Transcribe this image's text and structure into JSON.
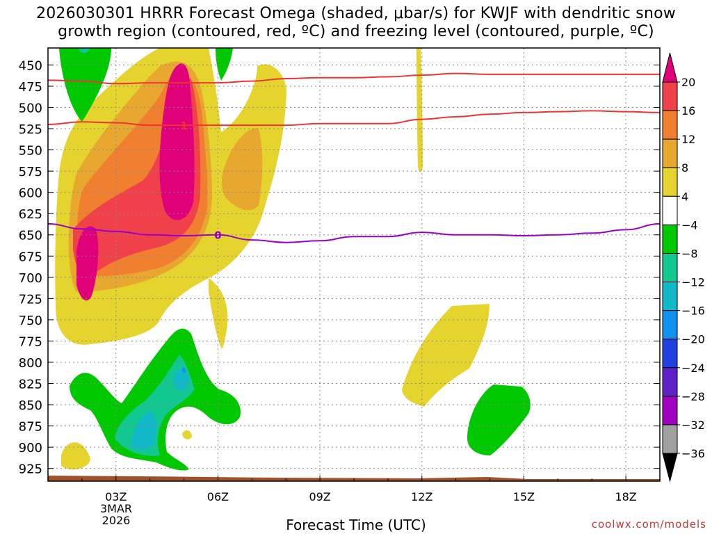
{
  "chart_data": {
    "type": "time-height contour",
    "title_line1": "2026030301 HRRR Forecast Omega (shaded, μbar/s) for KWJF with dendritic snow",
    "title_line2": "growth region (contoured, red, ºC) and freezing level (contoured, purple, ºC)",
    "xlabel": "Forecast Time (UTC)",
    "x_ticks": [
      "03Z",
      "06Z",
      "09Z",
      "12Z",
      "15Z",
      "18Z"
    ],
    "x_ticks_hours": [
      3,
      6,
      9,
      12,
      15,
      18
    ],
    "x_range_hours": [
      1,
      19
    ],
    "date_label_line1": "3MAR",
    "date_label_line2": "2026",
    "y_ticks": [
      450,
      475,
      500,
      525,
      550,
      575,
      600,
      625,
      650,
      675,
      700,
      725,
      750,
      775,
      800,
      825,
      850,
      875,
      900,
      925
    ],
    "ylim_hpa": [
      430,
      940
    ],
    "colorbar": {
      "labels": [
        "20",
        "16",
        "12",
        "8",
        "4",
        "−4",
        "−8",
        "−12",
        "−16",
        "−20",
        "−24",
        "−28",
        "−32",
        "−36"
      ],
      "colors": [
        "#e0007a",
        "#f0404a",
        "#f08030",
        "#e8a830",
        "#e6d42e",
        "#ffffff",
        "#00c800",
        "#10c890",
        "#10b8c8",
        "#1090f0",
        "#2040e0",
        "#6020c8",
        "#a000c0",
        "#a0a0a0"
      ]
    },
    "contours": [
      {
        "name": "dendritic-top (-18C)",
        "color": "#ee3333",
        "hours": [
          1,
          2,
          3,
          4,
          5,
          6,
          7,
          8,
          9,
          10,
          11,
          12,
          13,
          14,
          15,
          16,
          17,
          18,
          19
        ],
        "hpa": [
          468,
          469,
          472,
          471,
          471,
          471,
          469,
          466,
          465,
          465,
          464,
          462,
          460,
          461,
          461,
          461,
          461,
          461,
          461
        ]
      },
      {
        "name": "dendritic-bottom (-12C)",
        "color": "#ee3333",
        "label": "-12",
        "hours": [
          1,
          2,
          3,
          4,
          5,
          6,
          7,
          8,
          9,
          10,
          11,
          12,
          13,
          14,
          15,
          16,
          17,
          18,
          19
        ],
        "hpa": [
          520,
          517,
          518,
          521,
          521,
          521,
          521,
          521,
          519,
          519,
          519,
          514,
          511,
          508,
          506,
          505,
          504,
          505,
          506
        ]
      },
      {
        "name": "freezing-level (0C)",
        "color": "#9a00c8",
        "label": "0",
        "hours": [
          1,
          2,
          3,
          4,
          5,
          6,
          7,
          8,
          9,
          10,
          11,
          12,
          13,
          14,
          15,
          16,
          17,
          18,
          19
        ],
        "hpa": [
          637,
          643,
          646,
          650,
          651,
          650,
          656,
          659,
          657,
          652,
          652,
          647,
          650,
          650,
          651,
          650,
          648,
          644,
          637
        ]
      }
    ],
    "freezing_label": "0",
    "dendritic_label": "-12"
  },
  "colors": {
    "title": "#000000",
    "credit": "#cc3333",
    "grid": "#888888",
    "ground": "#a0522d"
  },
  "credit": "coolwx.com/models"
}
